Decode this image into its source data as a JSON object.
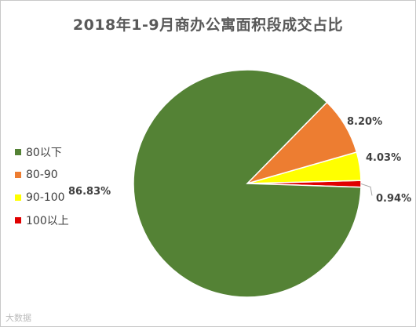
{
  "chart_data": {
    "type": "pie",
    "title": "2018年1-9月商办公寓面积段成交占比",
    "slices": [
      {
        "label": "80以下",
        "value": 86.83,
        "display": "86.83%",
        "color": "#548235"
      },
      {
        "label": "80-90",
        "value": 8.2,
        "display": "8.20%",
        "color": "#ed7d31"
      },
      {
        "label": "90-100",
        "value": 4.03,
        "display": "4.03%",
        "color": "#ffff00"
      },
      {
        "label": "100以上",
        "value": 0.94,
        "display": "0.94%",
        "color": "#e00000"
      }
    ],
    "legend_position": "left"
  },
  "watermark": "大数据"
}
